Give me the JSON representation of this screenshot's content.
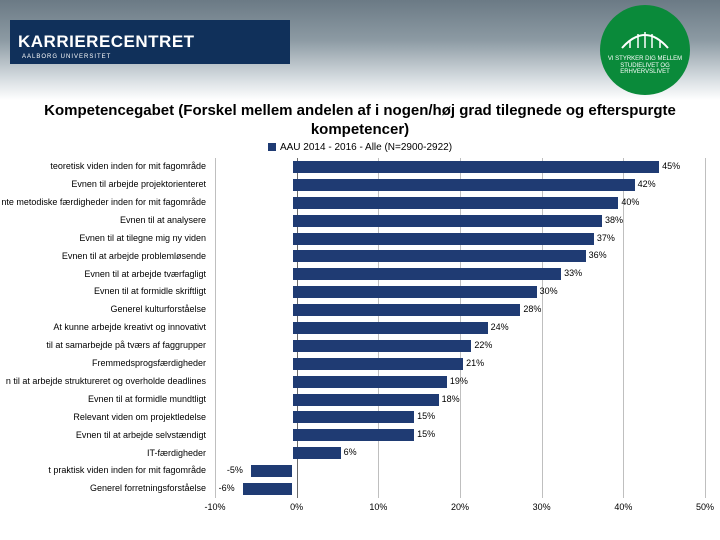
{
  "header": {
    "logo_main": "KARRIERECENTRET",
    "logo_sub": "AALBORG UNIVERSITET",
    "badge_text": "VI STYRKER DIG MELLEM STUDIELIVET OG ERHVERVSLIVET"
  },
  "chart": {
    "type": "bar-horizontal",
    "title": "Kompetencegabet (Forskel mellem andelen af i nogen/høj grad tilegnede og efterspurgte kompetencer)",
    "legend": "AAU 2014 - 2016 - Alle (N=2900-2922)",
    "series_color": "#1f3b73",
    "grid_color": "#bfbfbf",
    "axis_color": "#6a6a6a",
    "label_fontsize": 9,
    "value_fontsize": 9,
    "xlim": [
      -10,
      50
    ],
    "xtick_step": 10,
    "xticks": [
      "-10%",
      "0%",
      "10%",
      "20%",
      "30%",
      "40%",
      "50%"
    ],
    "rows": [
      {
        "label": "teoretisk viden inden for mit fagområde",
        "value": 45,
        "disp": "45%"
      },
      {
        "label": "Evnen til arbejde projektorienteret",
        "value": 42,
        "disp": "42%"
      },
      {
        "label": "nte metodiske færdigheder inden for mit fagområde",
        "value": 40,
        "disp": "40%",
        "two": true
      },
      {
        "label": "Evnen til at analysere",
        "value": 38,
        "disp": "38%"
      },
      {
        "label": "Evnen til at tilegne mig ny viden",
        "value": 37,
        "disp": "37%"
      },
      {
        "label": "Evnen til at arbejde problemløsende",
        "value": 36,
        "disp": "36%"
      },
      {
        "label": "Evnen til at arbejde tværfagligt",
        "value": 33,
        "disp": "33%"
      },
      {
        "label": "Evnen til at formidle skriftligt",
        "value": 30,
        "disp": "30%"
      },
      {
        "label": "Generel kulturforståelse",
        "value": 28,
        "disp": "28%"
      },
      {
        "label": "At kunne arbejde kreativt og innovativt",
        "value": 24,
        "disp": "24%"
      },
      {
        "label": "til at samarbejde på tværs af faggrupper",
        "value": 22,
        "disp": "22%"
      },
      {
        "label": "Fremmedsprogsfærdigheder",
        "value": 21,
        "disp": "21%"
      },
      {
        "label": "n til at arbejde struktureret og overholde deadlines",
        "value": 19,
        "disp": "19%",
        "two": true
      },
      {
        "label": "Evnen til at formidle mundtligt",
        "value": 18,
        "disp": "18%"
      },
      {
        "label": "Relevant viden om projektledelse",
        "value": 15,
        "disp": "15%"
      },
      {
        "label": "Evnen til at arbejde selvstændigt",
        "value": 15,
        "disp": "15%"
      },
      {
        "label": "IT-færdigheder",
        "value": 6,
        "disp": "6%"
      },
      {
        "label": "t praktisk viden inden for mit fagområde",
        "value": -5,
        "disp": "-5%"
      },
      {
        "label": "Generel forretningsforståelse",
        "value": -6,
        "disp": "-6%"
      }
    ]
  }
}
